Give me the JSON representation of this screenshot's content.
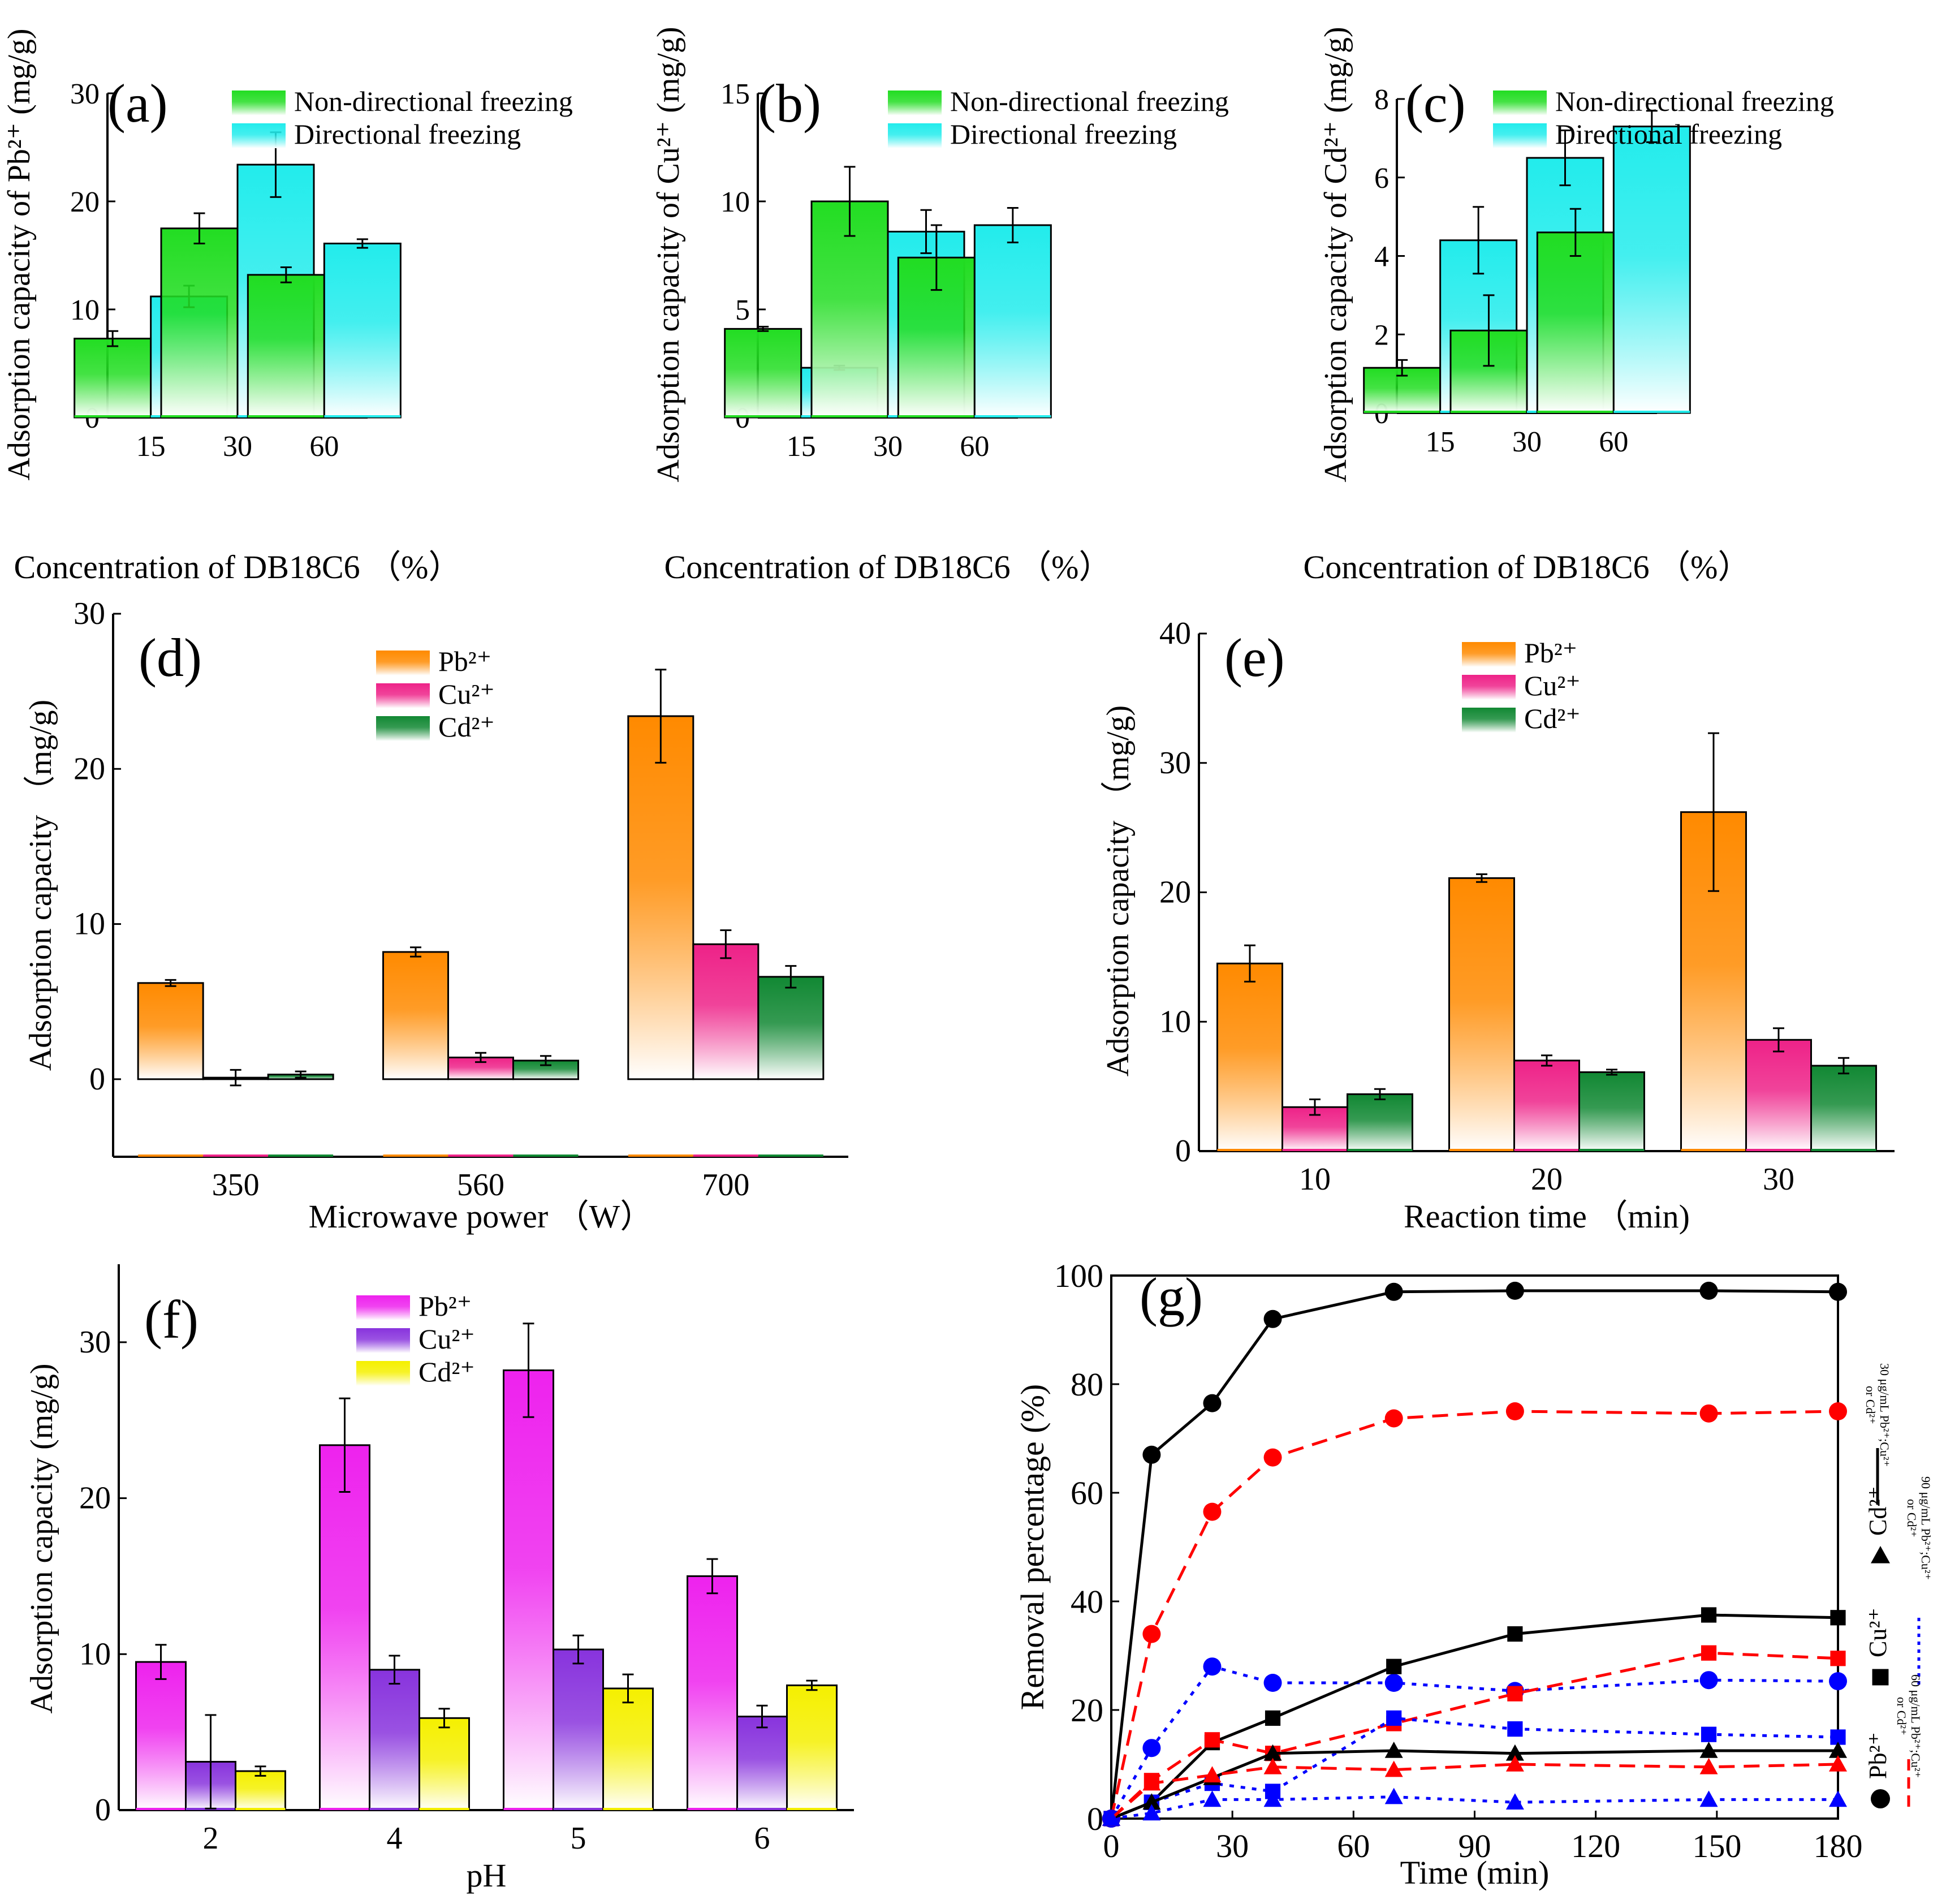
{
  "chart_data": [
    {
      "id": "a",
      "type": "bar",
      "panel_label": "(a)",
      "ylabel": "Adsorption capacity of Pb²⁺ (mg/g)",
      "xlabel": "Concentration of DB18C6 （%）",
      "categories": [
        "15",
        "30",
        "60"
      ],
      "ylim": [
        0,
        30
      ],
      "yticks": [
        0,
        10,
        20,
        30
      ],
      "series": [
        {
          "name": "Non-directional freezing",
          "color": "#22dd22",
          "values": [
            7.3,
            17.5,
            13.2
          ],
          "errors": [
            0.7,
            1.4,
            0.7
          ]
        },
        {
          "name": "Directional freezing",
          "color": "#22ecec",
          "values": [
            11.2,
            23.4,
            16.1
          ],
          "errors": [
            1.0,
            3.0,
            0.4
          ]
        }
      ]
    },
    {
      "id": "b",
      "type": "bar",
      "panel_label": "(b)",
      "ylabel": "Adsorption capacity of Cu²⁺ (mg/g)",
      "xlabel": "Concentration of DB18C6 （%）",
      "categories": [
        "15",
        "30",
        "60"
      ],
      "ylim": [
        0,
        15
      ],
      "yticks": [
        0,
        5,
        10,
        15
      ],
      "series": [
        {
          "name": "Non-directional freezing",
          "color": "#22dd22",
          "values": [
            4.1,
            10.0,
            7.4
          ],
          "errors": [
            0.1,
            1.6,
            1.5
          ]
        },
        {
          "name": "Directional freezing",
          "color": "#22ecec",
          "values": [
            2.3,
            8.6,
            8.9
          ],
          "errors": [
            0.1,
            1.0,
            0.8
          ]
        }
      ]
    },
    {
      "id": "c",
      "type": "bar",
      "panel_label": "(c)",
      "ylabel": "Adsorption capacity of Cd²⁺ (mg/g)",
      "xlabel": "Concentration of DB18C6 （%）",
      "categories": [
        "15",
        "30",
        "60"
      ],
      "ylim": [
        0,
        8
      ],
      "yticks": [
        0,
        2,
        4,
        6,
        8
      ],
      "series": [
        {
          "name": "Non-directional freezing",
          "color": "#22dd22",
          "values": [
            1.15,
            2.1,
            4.6
          ],
          "errors": [
            0.2,
            0.9,
            0.6
          ]
        },
        {
          "name": "Directional freezing",
          "color": "#22ecec",
          "values": [
            4.4,
            6.5,
            7.3
          ],
          "errors": [
            0.85,
            0.7,
            0.4
          ]
        }
      ]
    },
    {
      "id": "d",
      "type": "bar",
      "panel_label": "(d)",
      "ylabel": "Adsorption capacity （mg/g)",
      "xlabel": "Microwave power （W）",
      "categories": [
        "350",
        "560",
        "700"
      ],
      "ylim": [
        -5,
        30
      ],
      "yticks": [
        0,
        10,
        20,
        30
      ],
      "series": [
        {
          "name": "Pb²⁺",
          "color": "#ff8a00",
          "values": [
            6.2,
            8.2,
            23.4
          ],
          "errors": [
            0.2,
            0.3,
            3.0
          ]
        },
        {
          "name": "Cu²⁺",
          "color": "#ee2288",
          "values": [
            0.1,
            1.4,
            8.7
          ],
          "errors": [
            0.5,
            0.3,
            0.9
          ]
        },
        {
          "name": "Cd²⁺",
          "color": "#118833",
          "values": [
            0.3,
            1.2,
            6.6
          ],
          "errors": [
            0.2,
            0.3,
            0.7
          ]
        }
      ]
    },
    {
      "id": "e",
      "type": "bar",
      "panel_label": "(e)",
      "ylabel": "Adsorption capacity （mg/g)",
      "xlabel": "Reaction time （min)",
      "categories": [
        "10",
        "20",
        "30"
      ],
      "ylim": [
        0,
        40
      ],
      "yticks": [
        0,
        10,
        20,
        30,
        40
      ],
      "series": [
        {
          "name": "Pb²⁺",
          "color": "#ff8a00",
          "values": [
            14.5,
            21.1,
            26.2
          ],
          "errors": [
            1.4,
            0.3,
            6.1
          ]
        },
        {
          "name": "Cu²⁺",
          "color": "#ee2288",
          "values": [
            3.4,
            7.0,
            8.6
          ],
          "errors": [
            0.6,
            0.4,
            0.9
          ]
        },
        {
          "name": "Cd²⁺",
          "color": "#118833",
          "values": [
            4.4,
            6.1,
            6.6
          ],
          "errors": [
            0.4,
            0.2,
            0.6
          ]
        }
      ]
    },
    {
      "id": "f",
      "type": "bar",
      "panel_label": "(f)",
      "ylabel": "Adsorption capacity (mg/g)",
      "xlabel": "pH",
      "categories": [
        "2",
        "4",
        "5",
        "6"
      ],
      "ylim": [
        0,
        35
      ],
      "yticks": [
        0,
        10,
        20,
        30
      ],
      "series": [
        {
          "name": "Pb²⁺",
          "color": "#ee22ee",
          "values": [
            9.5,
            23.4,
            28.2,
            15.0
          ],
          "errors": [
            1.1,
            3.0,
            3.0,
            1.1
          ]
        },
        {
          "name": "Cu²⁺",
          "color": "#8833dd",
          "values": [
            3.1,
            9.0,
            10.3,
            6.0
          ],
          "errors": [
            3.0,
            0.9,
            0.9,
            0.7
          ]
        },
        {
          "name": "Cd²⁺",
          "color": "#f5f000",
          "values": [
            2.5,
            5.9,
            7.8,
            8.0
          ],
          "errors": [
            0.3,
            0.6,
            0.9,
            0.3
          ]
        }
      ]
    },
    {
      "id": "g",
      "type": "line",
      "panel_label": "(g)",
      "ylabel": "Removal percentage (%)",
      "xlabel": "Time (min)",
      "xlim": [
        0,
        180
      ],
      "ylim": [
        0,
        100
      ],
      "xticks": [
        0,
        30,
        60,
        90,
        120,
        150,
        180
      ],
      "yticks": [
        0,
        20,
        40,
        60,
        80,
        100
      ],
      "x": [
        0,
        10,
        25,
        40,
        70,
        100,
        148,
        180
      ],
      "series": [
        {
          "name": "Pb2+ 30",
          "ion": "Pb",
          "conc": "30",
          "color": "#000000",
          "values": [
            0,
            67,
            76.5,
            92,
            97,
            97.2,
            97.2,
            97
          ]
        },
        {
          "name": "Pb2+ 60",
          "ion": "Pb",
          "conc": "60",
          "color": "#ff0000",
          "values": [
            0,
            34,
            56.5,
            66.5,
            73.7,
            75,
            74.6,
            75
          ]
        },
        {
          "name": "Pb2+ 90",
          "ion": "Pb",
          "conc": "90",
          "color": "#0000ff",
          "values": [
            0,
            13,
            28,
            25,
            25,
            23.5,
            25.5,
            25.3
          ]
        },
        {
          "name": "Cu2+ 30",
          "ion": "Cu",
          "conc": "30",
          "color": "#000000",
          "values": [
            0,
            3,
            14,
            18.5,
            28,
            34,
            37.5,
            37
          ]
        },
        {
          "name": "Cu2+ 60",
          "ion": "Cu",
          "conc": "60",
          "color": "#ff0000",
          "values": [
            0,
            7,
            14.5,
            12,
            17.5,
            23,
            30.5,
            29.5
          ]
        },
        {
          "name": "Cu2+ 90",
          "ion": "Cu",
          "conc": "90",
          "color": "#0000ff",
          "values": [
            0,
            3,
            6.5,
            5,
            18.5,
            16.5,
            15.5,
            15
          ]
        },
        {
          "name": "Cd2+ 30",
          "ion": "Cd",
          "conc": "30",
          "color": "#000000",
          "values": [
            0,
            3,
            7.5,
            12,
            12.5,
            12,
            12.5,
            12.5
          ]
        },
        {
          "name": "Cd2+ 60",
          "ion": "Cd",
          "conc": "60",
          "color": "#ff0000",
          "values": [
            0,
            6.5,
            8,
            9.5,
            9,
            10,
            9.5,
            10
          ]
        },
        {
          "name": "Cd2+ 90",
          "ion": "Cd",
          "conc": "90",
          "color": "#0000ff",
          "values": [
            0,
            1,
            3.5,
            3.5,
            4,
            3,
            3.5,
            3.5
          ]
        }
      ],
      "legend": {
        "ions": [
          {
            "symbol": "circle",
            "label": "Pb²⁺"
          },
          {
            "symbol": "square",
            "label": "Cu²⁺"
          },
          {
            "symbol": "triangle",
            "label": "Cd²⁺"
          }
        ],
        "lines": [
          {
            "style": "solid",
            "color": "#000000",
            "label1": "30 μg/mL Pb²⁺;Cu²⁺",
            "label2": "or Cd²⁺"
          },
          {
            "style": "dot",
            "color": "#0000ff",
            "label1": "90 μg/mL Pb²⁺;Cu²⁺",
            "label2": "or Cd²⁺"
          },
          {
            "style": "dash",
            "color": "#ff0000",
            "label1": "60 μg/mL Pb²⁺;Cu²⁺",
            "label2": "or Cd²⁺"
          }
        ]
      }
    }
  ]
}
